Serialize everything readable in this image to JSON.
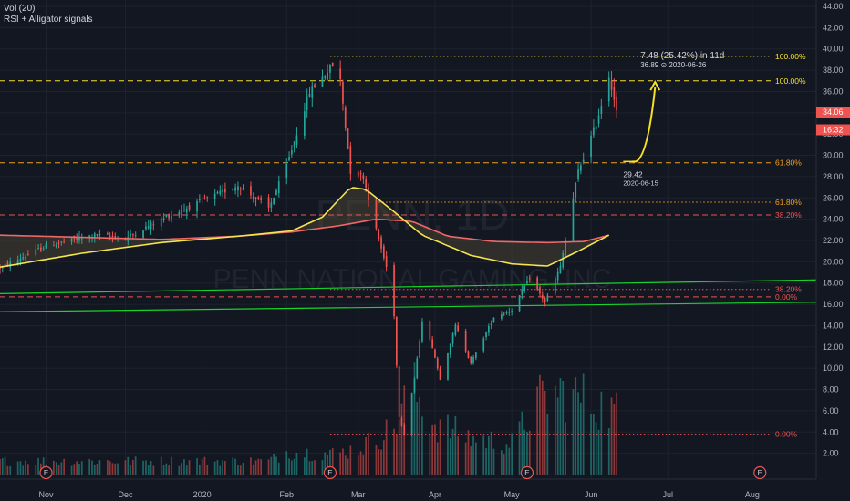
{
  "legend": {
    "volume": "Vol (20)",
    "study": "RSI + Alligator signals"
  },
  "watermark": {
    "symbol": "PENN, 1D",
    "name": "PENN NATIONAL GAMING, INC"
  },
  "colors": {
    "background": "#131722",
    "up": "#26a69a",
    "down": "#ef5350",
    "ma_fast": "#f5e44f",
    "ma_slow": "#f06767",
    "trend": "#19d22a",
    "fib": "#f0a01e",
    "target": "#f5e12a",
    "cloud": "#524b36"
  },
  "price_badges": [
    {
      "label": "34.06",
      "price": 34.06,
      "color": "#ef5350"
    },
    {
      "label": "16:32",
      "price": 32.4,
      "color": "#ef5350"
    }
  ],
  "projection": {
    "change_label": "7.48 (25.42%) in 11d",
    "target_label": "36.89 ⊙ 2020-06-26",
    "start_label": "29.42",
    "start_date_label": "2020-06-15",
    "start_date": "2020-06-15",
    "start_price": 29.42,
    "target_date": "2020-06-26",
    "target_price": 36.89
  },
  "fib_levels": [
    {
      "label": "100.00%",
      "price": 39.3,
      "style": "dotted",
      "color": "#f5e12a",
      "from": "2020-02-20"
    },
    {
      "label": "100.00%",
      "price": 37.0,
      "style": "dashed",
      "color": "#f5e12a",
      "from": "2019-10-14"
    },
    {
      "label": "61.80%",
      "price": 29.3,
      "style": "dashed",
      "color": "#f0a01e",
      "from": "2019-10-14"
    },
    {
      "label": "61.80%",
      "price": 25.6,
      "style": "dotted",
      "color": "#f0a01e",
      "from": "2020-03-10"
    },
    {
      "label": "38.20%",
      "price": 24.4,
      "style": "dashed",
      "color": "#ef5350",
      "from": "2019-10-14"
    },
    {
      "label": "38.20%",
      "price": 17.4,
      "style": "dotted",
      "color": "#ef5350",
      "from": "2020-02-20"
    },
    {
      "label": "0.00%",
      "price": 16.7,
      "style": "dashed",
      "color": "#ef5350",
      "from": "2019-10-14"
    },
    {
      "label": "0.00%",
      "price": 3.8,
      "style": "dotted",
      "color": "#ef5350",
      "from": "2020-02-20"
    }
  ],
  "earnings_markers": [
    {
      "label": "E",
      "date": "2019-11-01"
    },
    {
      "label": "E",
      "date": "2020-02-20"
    },
    {
      "label": "E",
      "date": "2020-05-07"
    },
    {
      "label": "E",
      "date": "2020-08-06"
    }
  ],
  "chart_data": {
    "type": "candlestick",
    "title": "PENN, 1D",
    "date_start": "2019-10-14",
    "date_end": "2020-08-28",
    "x_ticks": [
      {
        "label": "Nov",
        "date": "2019-11-01"
      },
      {
        "label": "Dec",
        "date": "2019-12-02"
      },
      {
        "label": "2020",
        "date": "2020-01-01"
      },
      {
        "label": "Feb",
        "date": "2020-02-03"
      },
      {
        "label": "Mar",
        "date": "2020-03-02"
      },
      {
        "label": "Apr",
        "date": "2020-04-01"
      },
      {
        "label": "May",
        "date": "2020-05-01"
      },
      {
        "label": "Jun",
        "date": "2020-06-01"
      },
      {
        "label": "Jul",
        "date": "2020-07-01"
      },
      {
        "label": "Aug",
        "date": "2020-08-03"
      }
    ],
    "y_range": [
      0,
      44
    ],
    "y_ticks": [
      "2.00",
      "4.00",
      "6.00",
      "8.00",
      "10.00",
      "12.00",
      "14.00",
      "16.00",
      "18.00",
      "20.00",
      "22.00",
      "24.00",
      "26.00",
      "28.00",
      "30.00",
      "32.00",
      "34.00",
      "36.00",
      "38.00",
      "40.00",
      "42.00",
      "44.00"
    ],
    "anchors": [
      [
        "2019-10-14",
        19.4
      ],
      [
        "2019-11-01",
        21.5
      ],
      [
        "2019-11-20",
        22.5
      ],
      [
        "2019-12-02",
        22.2
      ],
      [
        "2019-12-16",
        24.0
      ],
      [
        "2020-01-02",
        25.8
      ],
      [
        "2020-01-15",
        27.2
      ],
      [
        "2020-01-27",
        25.0
      ],
      [
        "2020-02-03",
        29.0
      ],
      [
        "2020-02-12",
        36.0
      ],
      [
        "2020-02-21",
        38.5
      ],
      [
        "2020-02-24",
        37.0
      ],
      [
        "2020-02-28",
        28.5
      ],
      [
        "2020-03-04",
        28.0
      ],
      [
        "2020-03-09",
        23.0
      ],
      [
        "2020-03-13",
        19.5
      ],
      [
        "2020-03-16",
        15.0
      ],
      [
        "2020-03-18",
        5.5
      ],
      [
        "2020-03-20",
        3.8
      ],
      [
        "2020-03-24",
        9.0
      ],
      [
        "2020-03-27",
        14.5
      ],
      [
        "2020-03-31",
        12.0
      ],
      [
        "2020-04-03",
        9.0
      ],
      [
        "2020-04-09",
        14.0
      ],
      [
        "2020-04-15",
        10.5
      ],
      [
        "2020-04-24",
        14.8
      ],
      [
        "2020-05-01",
        15.5
      ],
      [
        "2020-05-08",
        18.5
      ],
      [
        "2020-05-14",
        16.2
      ],
      [
        "2020-05-20",
        19.5
      ],
      [
        "2020-05-27",
        28.5
      ],
      [
        "2020-06-03",
        33.0
      ],
      [
        "2020-06-08",
        37.5
      ],
      [
        "2020-06-09",
        36.5
      ],
      [
        "2020-06-11",
        34.06
      ]
    ],
    "volume_range": [
      0,
      44
    ],
    "volume_anchors": [
      [
        "2019-10-14",
        1.3
      ],
      [
        "2020-01-27",
        1.3
      ],
      [
        "2020-02-03",
        2.2
      ],
      [
        "2020-02-21",
        2.0
      ],
      [
        "2020-03-02",
        2.5
      ],
      [
        "2020-03-16",
        4.5
      ],
      [
        "2020-03-23",
        8.5
      ],
      [
        "2020-03-31",
        5.0
      ],
      [
        "2020-04-15",
        3.5
      ],
      [
        "2020-05-01",
        3.0
      ],
      [
        "2020-05-11",
        7.0
      ],
      [
        "2020-05-22",
        8.0
      ],
      [
        "2020-06-01",
        7.0
      ],
      [
        "2020-06-11",
        6.0
      ]
    ],
    "ma_fast": [
      [
        "2019-10-14",
        19.5
      ],
      [
        "2019-11-15",
        20.8
      ],
      [
        "2019-12-16",
        21.8
      ],
      [
        "2020-01-15",
        22.4
      ],
      [
        "2020-02-05",
        22.9
      ],
      [
        "2020-02-17",
        24.2
      ],
      [
        "2020-02-28",
        27.0
      ],
      [
        "2020-03-05",
        26.8
      ],
      [
        "2020-03-16",
        24.7
      ],
      [
        "2020-03-27",
        22.5
      ],
      [
        "2020-04-15",
        20.6
      ],
      [
        "2020-05-01",
        19.8
      ],
      [
        "2020-05-15",
        19.6
      ],
      [
        "2020-05-27",
        21.0
      ],
      [
        "2020-06-08",
        22.5
      ]
    ],
    "ma_slow": [
      [
        "2019-10-14",
        22.5
      ],
      [
        "2019-12-16",
        22.1
      ],
      [
        "2020-01-15",
        22.4
      ],
      [
        "2020-02-05",
        22.8
      ],
      [
        "2020-02-24",
        23.4
      ],
      [
        "2020-03-09",
        24.0
      ],
      [
        "2020-03-23",
        23.8
      ],
      [
        "2020-04-06",
        22.4
      ],
      [
        "2020-04-24",
        21.9
      ],
      [
        "2020-05-15",
        21.8
      ],
      [
        "2020-05-29",
        21.9
      ],
      [
        "2020-06-08",
        22.5
      ]
    ],
    "trendlines": [
      {
        "name": "upper",
        "from": [
          "2019-10-14",
          17.0
        ],
        "to": [
          "2020-08-28",
          18.3
        ]
      },
      {
        "name": "lower",
        "from": [
          "2019-10-14",
          15.3
        ],
        "to": [
          "2020-08-28",
          16.2
        ]
      }
    ]
  }
}
